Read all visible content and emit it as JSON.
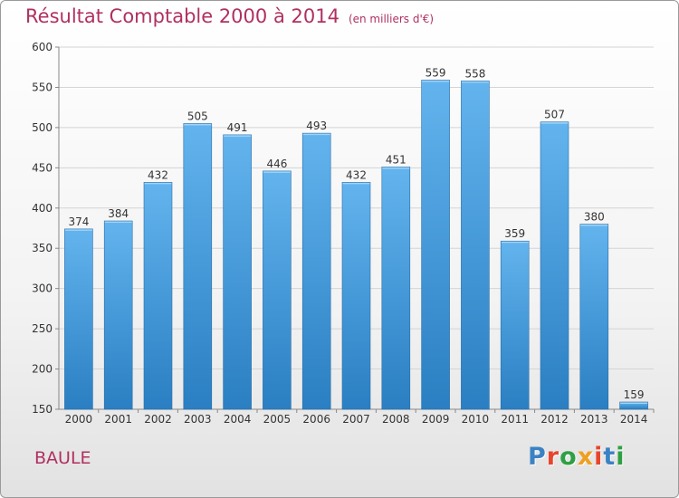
{
  "header": {
    "title": "Résultat Comptable 2000 à 2014",
    "unit": "(en milliers d'€)"
  },
  "footer": {
    "city": "BAULE",
    "logo": "Proxiti"
  },
  "colors": {
    "title": "#b03060",
    "bar_top": "#63b4ee",
    "bar_bottom": "#2a7fc2"
  },
  "chart_data": {
    "type": "bar",
    "title": "Résultat Comptable 2000 à 2014",
    "subtitle": "(en milliers d'€)",
    "categories": [
      "2000",
      "2001",
      "2002",
      "2003",
      "2004",
      "2005",
      "2006",
      "2007",
      "2008",
      "2009",
      "2010",
      "2011",
      "2012",
      "2013",
      "2014"
    ],
    "values": [
      374,
      384,
      432,
      505,
      491,
      446,
      493,
      432,
      451,
      559,
      558,
      359,
      507,
      380,
      159
    ],
    "ylim": [
      150,
      600
    ],
    "yticks": [
      150,
      200,
      250,
      300,
      350,
      400,
      450,
      500,
      550,
      600
    ],
    "grid": true
  }
}
